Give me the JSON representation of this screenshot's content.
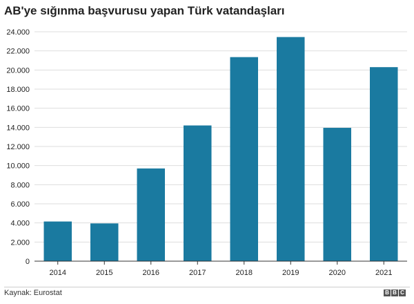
{
  "chart_data": {
    "type": "bar",
    "title": "AB'ye sığınma başvurusu yapan Türk vatandaşları",
    "categories": [
      "2014",
      "2015",
      "2016",
      "2017",
      "2018",
      "2019",
      "2020",
      "2021"
    ],
    "values": [
      4150,
      3950,
      9700,
      14200,
      21350,
      23450,
      13950,
      20300
    ],
    "ylim": [
      0,
      24000
    ],
    "yticks": [
      "0",
      "2.000",
      "4.000",
      "6.000",
      "8.000",
      "10.000",
      "12.000",
      "14.000",
      "16.000",
      "18.000",
      "20.000",
      "22.000",
      "24.000"
    ],
    "ytick_values": [
      0,
      2000,
      4000,
      6000,
      8000,
      10000,
      12000,
      14000,
      16000,
      18000,
      20000,
      22000,
      24000
    ],
    "bar_color": "#1a7aa0",
    "grid_color": "#dddddd",
    "grid": true
  },
  "footer": {
    "source": "Kaynak: Eurostat",
    "logo_letters": [
      "B",
      "B",
      "C"
    ]
  }
}
